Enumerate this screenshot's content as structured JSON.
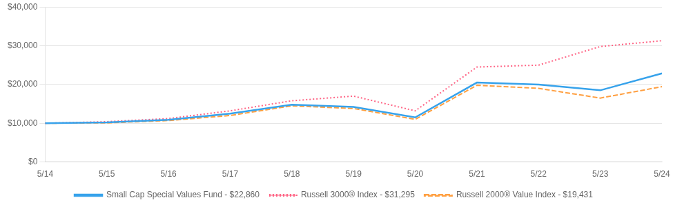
{
  "chart_data": {
    "type": "line",
    "categories": [
      "5/14",
      "5/15",
      "5/16",
      "5/17",
      "5/18",
      "5/19",
      "5/20",
      "5/21",
      "5/22",
      "5/23",
      "5/24"
    ],
    "series": [
      {
        "name": "Small Cap Special Values Fund - $22,860",
        "line_style": "solid",
        "values": [
          10000,
          10200,
          10900,
          12500,
          14800,
          14200,
          11500,
          20500,
          20000,
          18500,
          22860
        ]
      },
      {
        "name": "Russell 3000® Index - $31,295",
        "line_style": "dotted",
        "values": [
          10000,
          10400,
          11200,
          13200,
          15800,
          17000,
          13200,
          24500,
          25000,
          29800,
          31295
        ]
      },
      {
        "name": "Russell 2000® Value Index - $19,431",
        "line_style": "dashed",
        "values": [
          10000,
          10100,
          10700,
          12000,
          14500,
          13800,
          11000,
          19800,
          19000,
          16500,
          19431
        ]
      }
    ],
    "ylim": [
      0,
      40000
    ],
    "yticks": [
      {
        "value": 0,
        "label": "$0"
      },
      {
        "value": 10000,
        "label": "$10,000"
      },
      {
        "value": 20000,
        "label": "$20,000"
      },
      {
        "value": 30000,
        "label": "$30,000"
      },
      {
        "value": 40000,
        "label": "$40,000"
      }
    ],
    "grid": true,
    "legend": "bottom"
  }
}
